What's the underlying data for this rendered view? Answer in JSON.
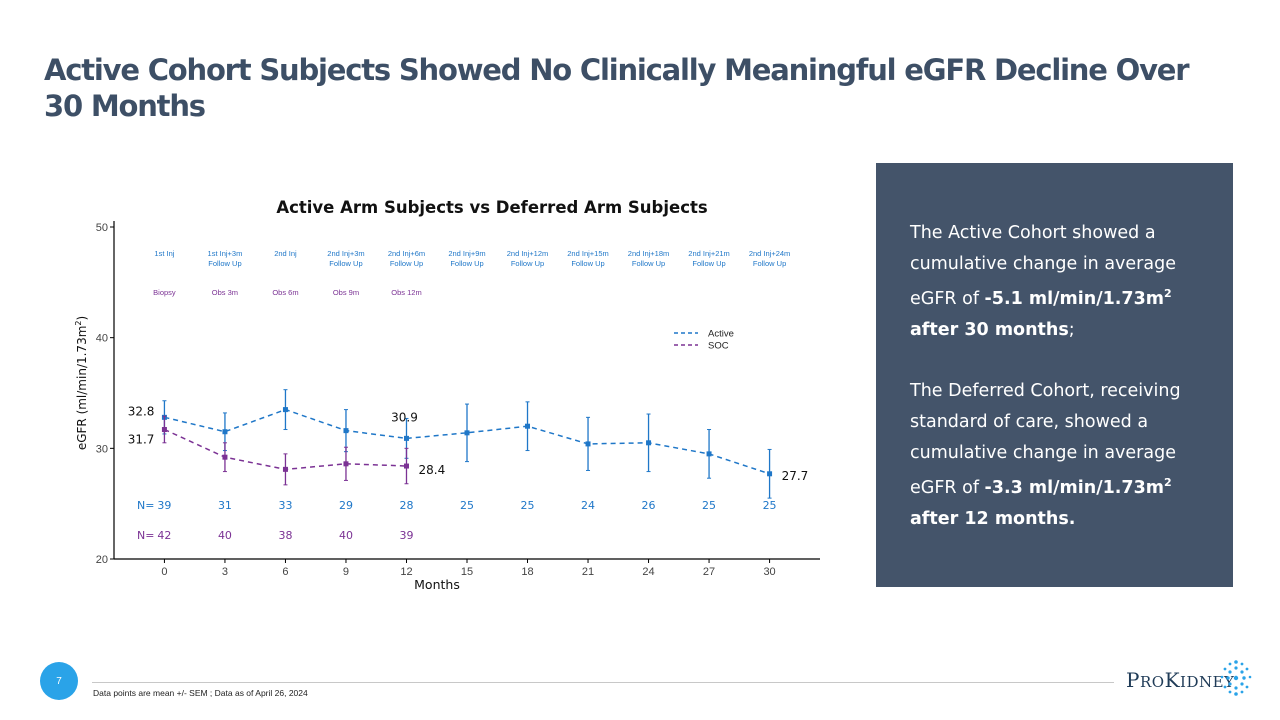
{
  "title": "Active Cohort Subjects Showed No Clinically Meaningful eGFR Decline Over 30 Months",
  "panel": {
    "p1_a": "The Active Cohort showed a cumulative change in average eGFR of ",
    "p1_bold": "-5.1 ml/min/1.73m",
    "p1_sup": "2",
    "p1_bold2": " after 30 months",
    "p1_end": ";",
    "p2_a": "The Deferred Cohort, receiving standard of care, showed a cumulative change in average eGFR of ",
    "p2_bold": "-3.3  ml/min/1.73m",
    "p2_sup": "2",
    "p2_bold2": " after 12 months."
  },
  "footer": {
    "page_number": "7",
    "footnote": "Data points are mean +/- SEM ; Data as of April 26, 2024",
    "logo_text": "ProKidney"
  },
  "colors": {
    "active": "#1f77c8",
    "soc": "#7b3294",
    "panel": "#44546a",
    "title": "#3d4f66",
    "accent": "#2aa3e8"
  },
  "chart_data": {
    "type": "line",
    "title": "Active Arm Subjects vs Deferred Arm Subjects",
    "xlabel": "Months",
    "ylabel": "eGFR (ml/min/1.73m",
    "ylabel_sup": "2",
    "ylabel_end": ")",
    "xlim": [
      -2.5,
      32.5
    ],
    "ylim": [
      20,
      50
    ],
    "xticks": [
      0,
      3,
      6,
      9,
      12,
      15,
      18,
      21,
      24,
      27,
      30
    ],
    "yticks": [
      20,
      30,
      40,
      50
    ],
    "legend_position": "top-right",
    "series": [
      {
        "name": "Active",
        "color": "#1f77c8",
        "x": [
          0,
          3,
          6,
          9,
          12,
          15,
          18,
          21,
          24,
          27,
          30
        ],
        "y": [
          32.8,
          31.5,
          33.5,
          31.6,
          30.9,
          31.4,
          32.0,
          30.4,
          30.5,
          29.5,
          27.7
        ],
        "err": [
          1.5,
          1.7,
          1.8,
          1.9,
          1.8,
          2.6,
          2.2,
          2.4,
          2.6,
          2.2,
          2.2
        ],
        "n_label": "N=",
        "n": [
          39,
          31,
          33,
          29,
          28,
          25,
          25,
          24,
          26,
          25,
          25
        ]
      },
      {
        "name": "SOC",
        "color": "#7b3294",
        "x": [
          0,
          3,
          6,
          9,
          12
        ],
        "y": [
          31.7,
          29.2,
          28.1,
          28.6,
          28.4
        ],
        "err": [
          1.2,
          1.3,
          1.4,
          1.5,
          1.6
        ],
        "n_label": "N=",
        "n": [
          42,
          40,
          38,
          40,
          39
        ]
      }
    ],
    "value_labels": [
      {
        "text": "32.8",
        "x": 0,
        "y": 32.8
      },
      {
        "text": "31.7",
        "x": 0,
        "y": 31.7
      },
      {
        "text": "30.9",
        "x": 12,
        "y": 30.9
      },
      {
        "text": "28.4",
        "x": 12,
        "y": 28.4
      },
      {
        "text": "27.7",
        "x": 30,
        "y": 27.7
      }
    ],
    "timeline_active": [
      {
        "x": 0,
        "lines": [
          "1st Inj"
        ]
      },
      {
        "x": 3,
        "lines": [
          "1st Inj+3m",
          "Follow Up"
        ]
      },
      {
        "x": 6,
        "lines": [
          "2nd Inj"
        ]
      },
      {
        "x": 9,
        "lines": [
          "2nd Inj+3m",
          "Follow Up"
        ]
      },
      {
        "x": 12,
        "lines": [
          "2nd Inj+6m",
          "Follow Up"
        ]
      },
      {
        "x": 15,
        "lines": [
          "2nd Inj+9m",
          "Follow Up"
        ]
      },
      {
        "x": 18,
        "lines": [
          "2nd Inj+12m",
          "Follow Up"
        ]
      },
      {
        "x": 21,
        "lines": [
          "2nd Inj+15m",
          "Follow Up"
        ]
      },
      {
        "x": 24,
        "lines": [
          "2nd Inj+18m",
          "Follow Up"
        ]
      },
      {
        "x": 27,
        "lines": [
          "2nd Inj+21m",
          "Follow Up"
        ]
      },
      {
        "x": 30,
        "lines": [
          "2nd Inj+24m",
          "Follow Up"
        ]
      }
    ],
    "timeline_soc": [
      {
        "x": 0,
        "text": "Biopsy"
      },
      {
        "x": 3,
        "text": "Obs 3m"
      },
      {
        "x": 6,
        "text": "Obs 6m"
      },
      {
        "x": 9,
        "text": "Obs 9m"
      },
      {
        "x": 12,
        "text": "Obs 12m"
      }
    ]
  }
}
